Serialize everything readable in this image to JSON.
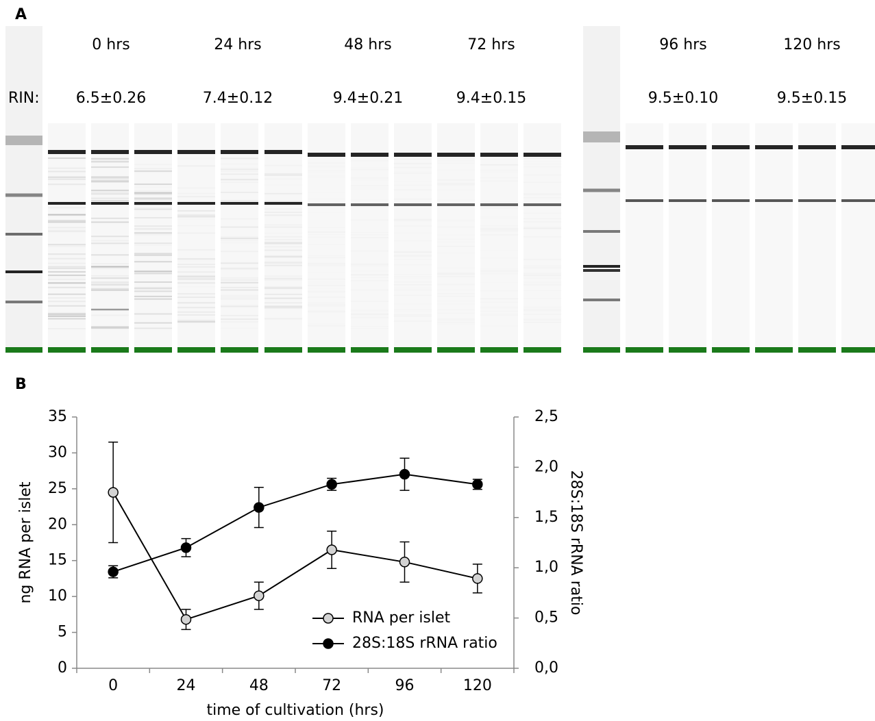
{
  "panel_a": {
    "label": "A",
    "rin_label": "RIN:",
    "time_points": [
      "0 hrs",
      "24 hrs",
      "48 hrs",
      "72 hrs",
      "96 hrs",
      "120 hrs"
    ],
    "rin_values": [
      "6.5±0.26",
      "7.4±0.12",
      "9.4±0.21",
      "9.4±0.15",
      "9.5±0.10",
      "9.5±0.15"
    ]
  },
  "chart_data": {
    "type": "line",
    "panel_label": "B",
    "x_label": "time of cultivation (hrs)",
    "y_label": "ng RNA per islet",
    "y2_label": "28S:18S rRNA ratio",
    "categories": [
      "0",
      "24",
      "48",
      "72",
      "96",
      "120"
    ],
    "ylim": [
      0,
      35
    ],
    "yticks": [
      0,
      5,
      10,
      15,
      20,
      25,
      30,
      35
    ],
    "y2lim": [
      0,
      2.5
    ],
    "y2ticks": [
      {
        "value": 0,
        "label": "0,0"
      },
      {
        "value": 0.5,
        "label": "0,5"
      },
      {
        "value": 1,
        "label": "1,0"
      },
      {
        "value": 1.5,
        "label": "1,5"
      },
      {
        "value": 2,
        "label": "2,0"
      },
      {
        "value": 2.5,
        "label": "2,5"
      }
    ],
    "series": [
      {
        "name": "RNA per islet",
        "color": "#d3d3d3",
        "values": [
          24.5,
          6.8,
          10.1,
          16.5,
          14.8,
          12.5
        ],
        "errors": [
          7.0,
          1.4,
          1.9,
          2.6,
          2.8,
          2.0
        ]
      },
      {
        "name": "28S:18S rRNA ratio",
        "color": "#000000",
        "axis": "y2",
        "values": [
          0.96,
          1.2,
          1.6,
          1.83,
          1.93,
          1.83
        ],
        "errors": [
          0.06,
          0.09,
          0.2,
          0.06,
          0.16,
          0.05
        ]
      }
    ]
  }
}
